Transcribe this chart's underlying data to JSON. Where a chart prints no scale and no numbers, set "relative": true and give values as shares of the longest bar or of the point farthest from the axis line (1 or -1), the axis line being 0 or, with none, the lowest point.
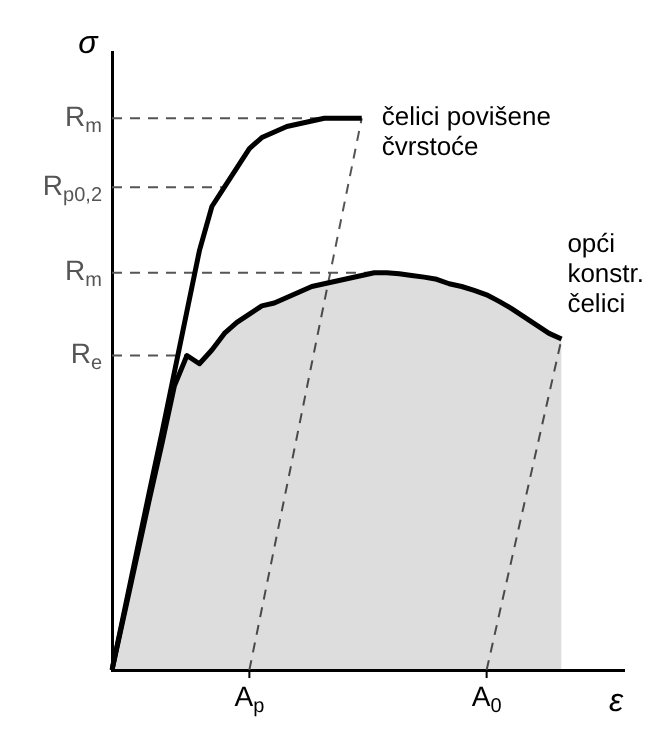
{
  "chart_data": {
    "type": "line",
    "xlabel": "ε",
    "ylabel": "σ",
    "relative": true,
    "categories": [
      null,
      null,
      null,
      null,
      null,
      null,
      null,
      null,
      null,
      null,
      null,
      "A$_{p}$",
      null,
      null,
      null,
      null,
      null,
      null,
      null,
      null,
      null,
      null,
      null,
      null,
      null,
      null,
      null,
      null,
      null,
      null,
      "A$_{0}$",
      null,
      null,
      null,
      null,
      null,
      null,
      null,
      null,
      null,
      null,
      null
    ],
    "series": [
      {
        "name": "čelici povišene čvrstoće",
        "color": "#000000",
        "values": [
          0,
          0.108,
          0.216,
          0.324,
          0.43,
          0.54,
          0.65,
          0.76,
          0.84,
          0.875,
          0.91,
          0.945,
          0.965,
          0.975,
          0.985,
          0.99,
          0.995,
          1.0,
          1.0,
          1.0,
          1.0,
          null,
          null,
          null,
          null,
          null,
          null,
          null,
          null,
          null,
          null,
          null,
          null,
          null,
          null,
          null,
          null,
          null,
          null,
          null,
          null,
          null
        ]
      },
      {
        "name": "opći konstr. čelici",
        "type": "area",
        "color": "#000000",
        "values": [
          0,
          0.103,
          0.206,
          0.31,
          0.41,
          0.515,
          0.57,
          0.555,
          0.58,
          0.61,
          0.63,
          0.645,
          0.66,
          0.665,
          0.675,
          0.685,
          0.695,
          0.7,
          0.705,
          0.71,
          0.715,
          0.72,
          0.72,
          0.718,
          0.715,
          0.712,
          0.708,
          0.7,
          0.695,
          0.688,
          0.68,
          0.668,
          0.655,
          0.64,
          0.625,
          0.61,
          0.6,
          null,
          null,
          null,
          null,
          null
        ]
      },
      {
        "color": "#555555",
        "line_style": "dashed",
        "values": [
          null,
          null,
          null,
          null,
          null,
          null,
          null,
          null,
          null,
          null,
          null,
          0,
          0.111,
          0.222,
          0.333,
          0.444,
          0.556,
          0.667,
          0.778,
          0.889,
          1.0,
          null,
          null,
          null,
          null,
          null,
          null,
          null,
          null,
          null,
          null,
          null,
          null,
          null,
          null,
          null,
          null,
          null,
          null,
          null,
          null,
          null
        ]
      },
      {
        "color": "#555555",
        "line_style": "dashed",
        "values": [
          null,
          null,
          null,
          null,
          null,
          null,
          null,
          null,
          null,
          null,
          null,
          null,
          null,
          null,
          null,
          null,
          null,
          null,
          null,
          null,
          null,
          null,
          null,
          null,
          null,
          null,
          null,
          null,
          null,
          null,
          0,
          0.1,
          0.2,
          0.3,
          0.4,
          0.5,
          0.6,
          null,
          null,
          null,
          null,
          null
        ]
      },
      {
        "name": "R$_{m}$",
        "color": "#555555",
        "line_style": "dashed",
        "values": [
          1.0,
          1.0,
          1.0,
          1.0,
          1.0,
          1.0,
          1.0,
          1.0,
          1.0,
          1.0,
          1.0,
          1.0,
          1.0,
          1.0,
          1.0,
          1.0,
          1.0,
          1.0,
          1.0,
          1.0,
          1.0,
          null,
          null,
          null,
          null,
          null,
          null,
          null,
          null,
          null,
          null,
          null,
          null,
          null,
          null,
          null,
          null,
          null,
          null,
          null,
          null,
          null
        ]
      },
      {
        "name": "R$_{p0,2}$",
        "color": "#555555",
        "line_style": "dashed",
        "values": [
          0.875,
          0.875,
          0.875,
          0.875,
          0.875,
          0.875,
          0.875,
          0.875,
          0.875,
          0.875,
          null,
          null,
          null,
          null,
          null,
          null,
          null,
          null,
          null,
          null,
          null,
          null,
          null,
          null,
          null,
          null,
          null,
          null,
          null,
          null,
          null,
          null,
          null,
          null,
          null,
          null,
          null,
          null,
          null,
          null,
          null,
          null
        ]
      },
      {
        "name": "R$_{m}$",
        "color": "#555555",
        "line_style": "dashed",
        "values": [
          0.72,
          0.72,
          0.72,
          0.72,
          0.72,
          0.72,
          0.72,
          0.72,
          0.72,
          0.72,
          0.72,
          0.72,
          0.72,
          0.72,
          0.72,
          0.72,
          0.72,
          0.72,
          0.72,
          0.72,
          0.72,
          0.72,
          null,
          null,
          null,
          null,
          null,
          null,
          null,
          null,
          null,
          null,
          null,
          null,
          null,
          null,
          null,
          null,
          null,
          null,
          null,
          null
        ]
      },
      {
        "name": "R$_{e}$",
        "color": "#555555",
        "line_style": "dashed",
        "values": [
          0.57,
          0.57,
          0.57,
          0.57,
          0.57,
          0.57,
          0.57,
          null,
          null,
          null,
          null,
          null,
          null,
          null,
          null,
          null,
          null,
          null,
          null,
          null,
          null,
          null,
          null,
          null,
          null,
          null,
          null,
          null,
          null,
          null,
          null,
          null,
          null,
          null,
          null,
          null,
          null,
          null,
          null,
          null,
          null,
          null
        ]
      }
    ]
  }
}
